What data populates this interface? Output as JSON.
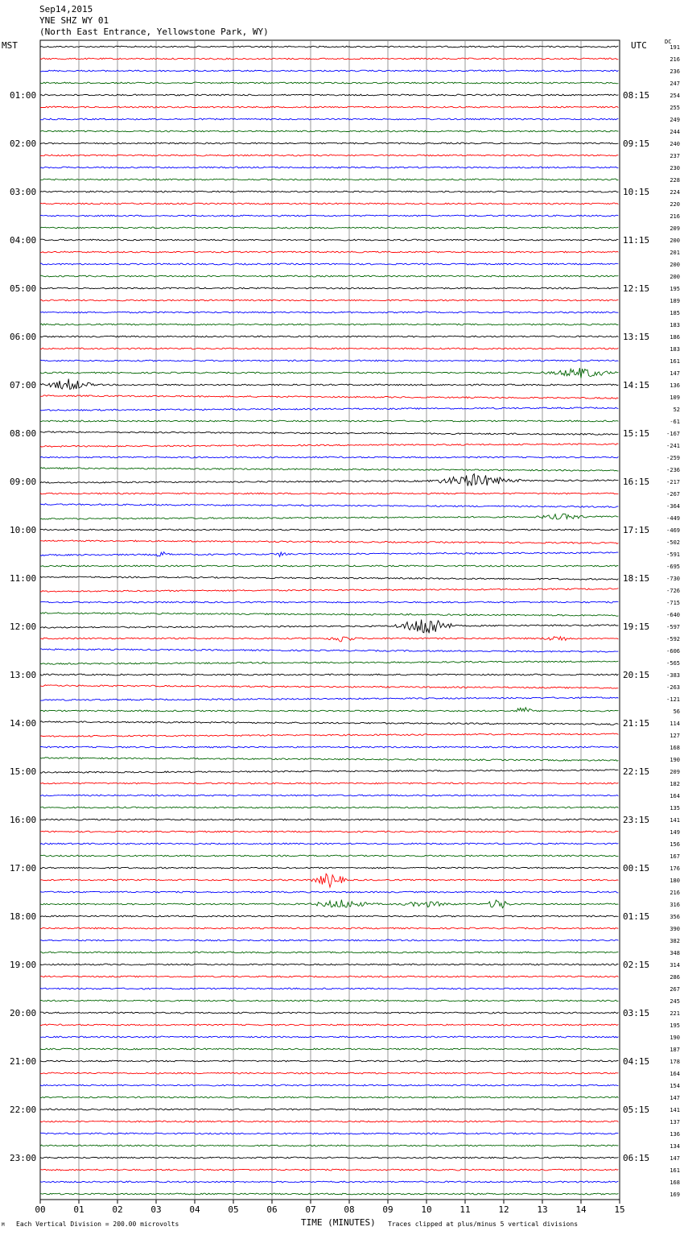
{
  "header": {
    "date": "Sep14,2015",
    "station": "YNE SHZ WY 01",
    "location": "(North East Entrance, Yellowstone Park, WY)"
  },
  "labels": {
    "left_zone": "MST",
    "right_zone": "UTC",
    "dc": "DC"
  },
  "footer": {
    "scale": "Each Vertical Division =  200.00 microvolts",
    "xlabel": "TIME (MINUTES)",
    "clip": "Traces clipped at plus/minus 5 vertical divisions",
    "logo": "M"
  },
  "colors": {
    "trace_cycle": [
      "#000000",
      "#ff0000",
      "#0000ff",
      "#006400"
    ],
    "grid": "#808080"
  },
  "chart_data": {
    "type": "line",
    "xlabel": "TIME (MINUTES)",
    "xlim": [
      0,
      15
    ],
    "x_ticks": [
      "00",
      "01",
      "02",
      "03",
      "04",
      "05",
      "06",
      "07",
      "08",
      "09",
      "10",
      "11",
      "12",
      "13",
      "14",
      "15"
    ],
    "rows_per_hour": 4,
    "row_count": 96,
    "hour_labels_mst": [
      "",
      "01:00",
      "02:00",
      "03:00",
      "04:00",
      "05:00",
      "06:00",
      "07:00",
      "08:00",
      "09:00",
      "10:00",
      "11:00",
      "12:00",
      "13:00",
      "14:00",
      "15:00",
      "16:00",
      "17:00",
      "18:00",
      "19:00",
      "20:00",
      "21:00",
      "22:00",
      "23:00"
    ],
    "hour_labels_utc": [
      "",
      "08:15",
      "09:15",
      "10:15",
      "11:15",
      "12:15",
      "13:15",
      "14:15",
      "15:15",
      "16:15",
      "17:15",
      "18:15",
      "19:15",
      "20:15",
      "21:15",
      "22:15",
      "23:15",
      "00:15",
      "01:15",
      "02:15",
      "03:15",
      "04:15",
      "05:15",
      "06:15"
    ],
    "dc_offsets": [
      191,
      216,
      236,
      247,
      254,
      255,
      249,
      244,
      240,
      237,
      230,
      228,
      224,
      220,
      216,
      209,
      200,
      201,
      200,
      200,
      195,
      189,
      185,
      183,
      186,
      183,
      161,
      147,
      136,
      109,
      52,
      -61,
      -167,
      -241,
      -259,
      -236,
      -217,
      -267,
      -364,
      -449,
      -469,
      -502,
      -591,
      -695,
      -730,
      -726,
      -715,
      -640,
      -597,
      -592,
      -606,
      -565,
      -383,
      -263,
      -121,
      56,
      114,
      127,
      168,
      190,
      209,
      182,
      164,
      135,
      141,
      149,
      156,
      167,
      176,
      180,
      216,
      316,
      356,
      390,
      382,
      348,
      314,
      286,
      267,
      245,
      221,
      195,
      190,
      187,
      178,
      164,
      154,
      147,
      141,
      137,
      136,
      134,
      147,
      161,
      168,
      169
    ],
    "events": [
      {
        "row": 27,
        "start_min": 13.0,
        "end_min": 15.0,
        "amp": 7
      },
      {
        "row": 28,
        "start_min": 0.0,
        "end_min": 1.5,
        "amp": 8
      },
      {
        "row": 36,
        "start_min": 10.0,
        "end_min": 12.5,
        "amp": 9
      },
      {
        "row": 39,
        "start_min": 12.5,
        "end_min": 14.5,
        "amp": 4
      },
      {
        "row": 42,
        "start_min": 2.8,
        "end_min": 3.5,
        "amp": 4
      },
      {
        "row": 42,
        "start_min": 6.0,
        "end_min": 6.5,
        "amp": 4
      },
      {
        "row": 48,
        "start_min": 9.2,
        "end_min": 10.8,
        "amp": 14
      },
      {
        "row": 49,
        "start_min": 7.3,
        "end_min": 8.3,
        "amp": 5
      },
      {
        "row": 49,
        "start_min": 12.8,
        "end_min": 14.0,
        "amp": 4
      },
      {
        "row": 55,
        "start_min": 12.2,
        "end_min": 12.8,
        "amp": 6
      },
      {
        "row": 69,
        "start_min": 7.0,
        "end_min": 8.0,
        "amp": 10
      },
      {
        "row": 71,
        "start_min": 6.8,
        "end_min": 8.8,
        "amp": 6
      },
      {
        "row": 71,
        "start_min": 9.0,
        "end_min": 11.0,
        "amp": 4
      },
      {
        "row": 71,
        "start_min": 11.5,
        "end_min": 12.2,
        "amp": 8
      }
    ]
  }
}
